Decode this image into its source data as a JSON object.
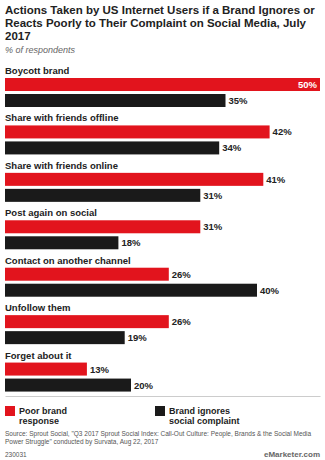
{
  "chart_data": {
    "type": "bar",
    "orientation": "horizontal",
    "title": "Actions Taken by US Internet Users if a Brand Ignores or Reacts Poorly to Their Complaint on Social Media, July 2017",
    "subtitle": "% of respondents",
    "categories": [
      "Boycott brand",
      "Share with friends offline",
      "Share with friends online",
      "Post again on social",
      "Contact on another channel",
      "Unfollow them",
      "Forget about it"
    ],
    "series": [
      {
        "name": "Poor brand response",
        "color": "#e2141d",
        "values": [
          50,
          42,
          41,
          31,
          26,
          26,
          13
        ],
        "value_labels": [
          "50%",
          "42%",
          "41%",
          "31%",
          "26%",
          "26%",
          "13%"
        ]
      },
      {
        "name": "Brand ignores social complaint",
        "color": "#1a1a1a",
        "values": [
          35,
          34,
          31,
          18,
          40,
          19,
          20
        ],
        "value_labels": [
          "35%",
          "34%",
          "31%",
          "18%",
          "40%",
          "19%",
          "20%"
        ]
      }
    ],
    "xlim": [
      0,
      50
    ],
    "data_labels": true,
    "tick_labels": "y",
    "grid": false,
    "legend": "bottom",
    "source": "Source: Sprout Social, \"Q3 2017 Sprout Social Index: Call-Out Culture: People, Brands & the Social Media Power Struggle\" conducted by Survata, Aug 22, 2017",
    "annotations": [
      "230031",
      "eMarketer.com"
    ]
  }
}
